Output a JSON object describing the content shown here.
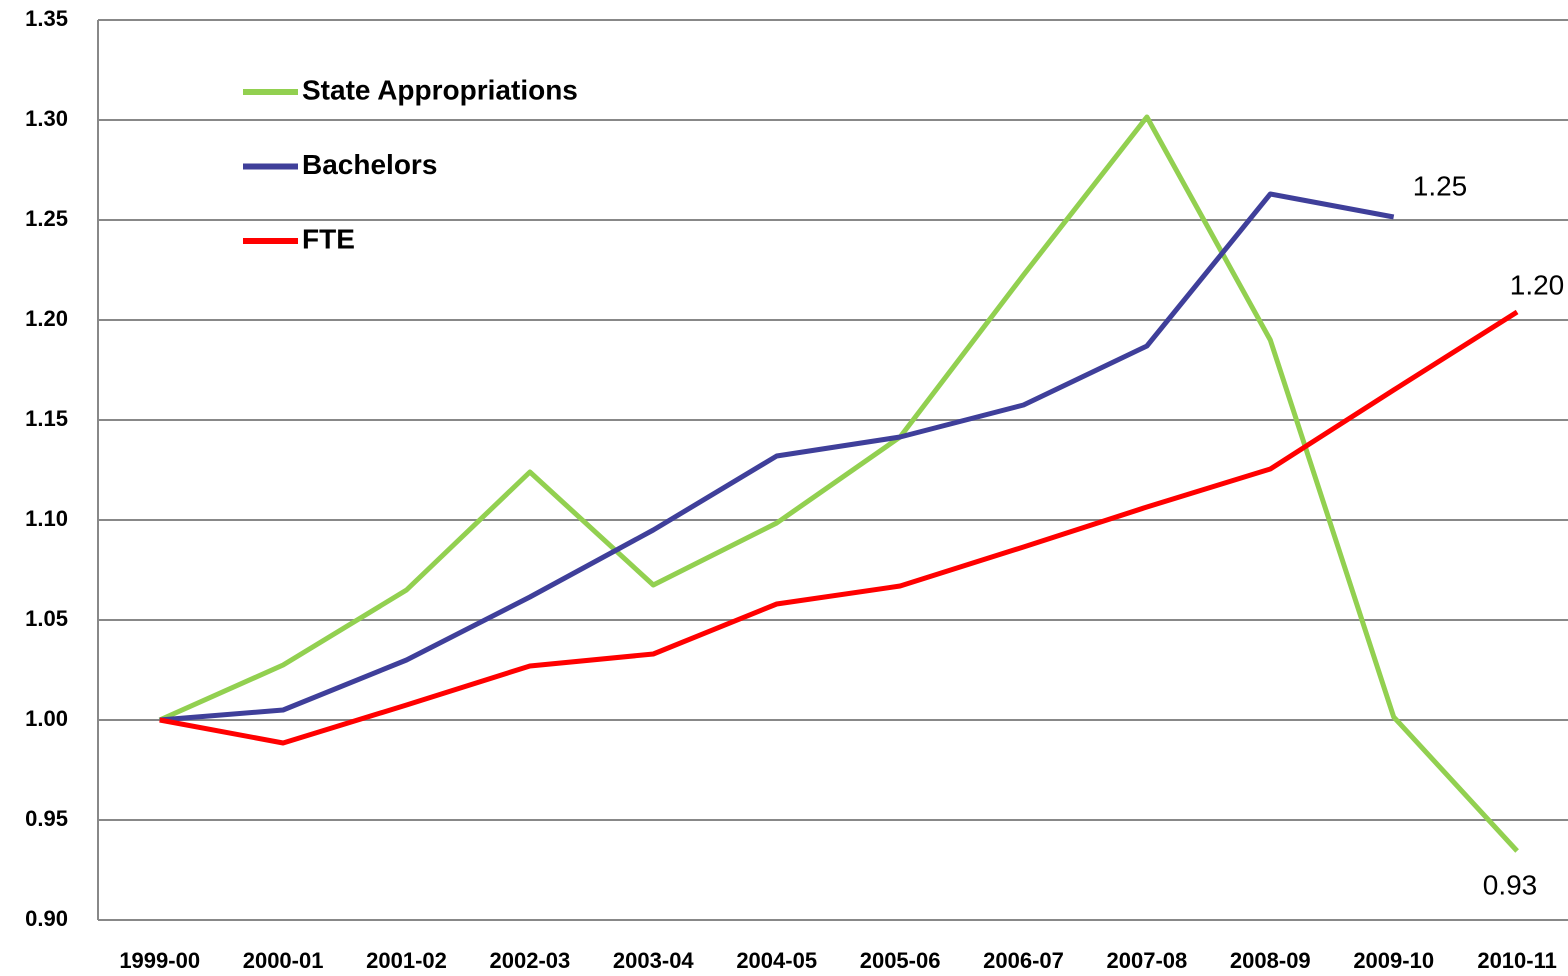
{
  "chart_data": {
    "type": "line",
    "categories": [
      "1999-00",
      "2000-01",
      "2001-02",
      "2002-03",
      "2003-04",
      "2004-05",
      "2005-06",
      "2006-07",
      "2007-08",
      "2008-09",
      "2009-10",
      "2010-11"
    ],
    "series": [
      {
        "name": "State Appropriations",
        "color": "#92d050",
        "values": [
          1.0,
          1.0275,
          1.065,
          1.124,
          1.0675,
          1.0985,
          1.1415,
          1.2225,
          1.3015,
          1.19,
          1.0015,
          0.9345
        ]
      },
      {
        "name": "Bachelors",
        "color": "#3f3f9a",
        "values": [
          1.0,
          1.005,
          1.03,
          1.0615,
          1.095,
          1.132,
          1.1415,
          1.1575,
          1.187,
          1.263,
          1.2515,
          null
        ]
      },
      {
        "name": "FTE",
        "color": "#ff0000",
        "values": [
          1.0,
          0.9885,
          1.0075,
          1.027,
          1.033,
          1.058,
          1.067,
          1.0865,
          1.1065,
          1.1255,
          1.165,
          1.204
        ]
      }
    ],
    "annotations": [
      "1.25",
      "1.20",
      "0.93"
    ],
    "ylim": [
      0.9,
      1.35
    ],
    "yticks": [
      {
        "value": 0.9,
        "label": "0.90"
      },
      0.95,
      {
        "value": 1.0,
        "label": "1.00"
      },
      1.05,
      {
        "value": 1.1,
        "label": "1.10"
      },
      1.15,
      {
        "value": 1.2,
        "label": "1.20"
      },
      1.25,
      {
        "value": 1.3,
        "label": "1.30"
      },
      1.35
    ],
    "grid": true,
    "legend": "upper left"
  }
}
